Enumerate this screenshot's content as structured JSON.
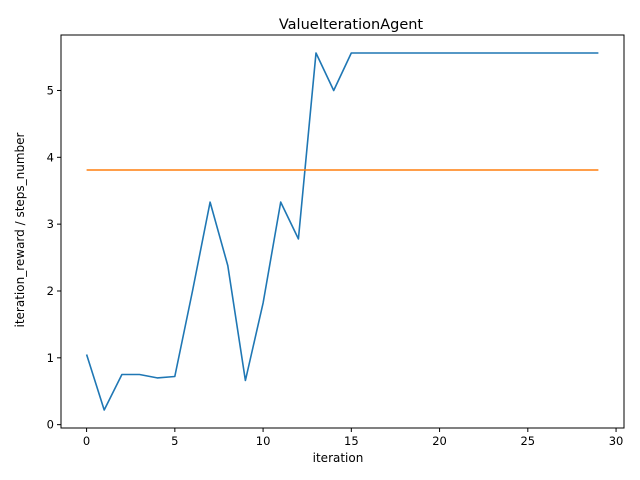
{
  "chart_data": {
    "type": "line",
    "title": "ValueIterationAgent",
    "xlabel": "iteration",
    "ylabel": "iteration_reward / steps_number",
    "xlim": [
      -1.45,
      30.45
    ],
    "ylim": [
      -0.05,
      5.83
    ],
    "xticks": [
      0,
      5,
      10,
      15,
      20,
      25,
      30
    ],
    "yticks": [
      0,
      1,
      2,
      3,
      4,
      5
    ],
    "grid": false,
    "series": [
      {
        "color": "#1f77b4",
        "x": [
          0,
          1,
          2,
          3,
          4,
          5,
          6,
          7,
          8,
          9,
          10,
          11,
          12,
          13,
          14,
          15,
          16,
          17,
          18,
          19,
          20,
          21,
          22,
          23,
          24,
          25,
          26,
          27,
          28,
          29
        ],
        "y": [
          1.05,
          0.22,
          0.75,
          0.75,
          0.7,
          0.72,
          2.0,
          3.33,
          2.38,
          0.66,
          1.82,
          3.33,
          2.78,
          5.56,
          5.0,
          5.56,
          5.56,
          5.56,
          5.56,
          5.56,
          5.56,
          5.56,
          5.56,
          5.56,
          5.56,
          5.56,
          5.56,
          5.56,
          5.56,
          5.56
        ]
      },
      {
        "color": "#ff7f0e",
        "x": [
          0,
          1,
          2,
          3,
          4,
          5,
          6,
          7,
          8,
          9,
          10,
          11,
          12,
          13,
          14,
          15,
          16,
          17,
          18,
          19,
          20,
          21,
          22,
          23,
          24,
          25,
          26,
          27,
          28,
          29
        ],
        "y": [
          3.81,
          3.81,
          3.81,
          3.81,
          3.81,
          3.81,
          3.81,
          3.81,
          3.81,
          3.81,
          3.81,
          3.81,
          3.81,
          3.81,
          3.81,
          3.81,
          3.81,
          3.81,
          3.81,
          3.81,
          3.81,
          3.81,
          3.81,
          3.81,
          3.81,
          3.81,
          3.81,
          3.81,
          3.81,
          3.81
        ]
      }
    ]
  }
}
